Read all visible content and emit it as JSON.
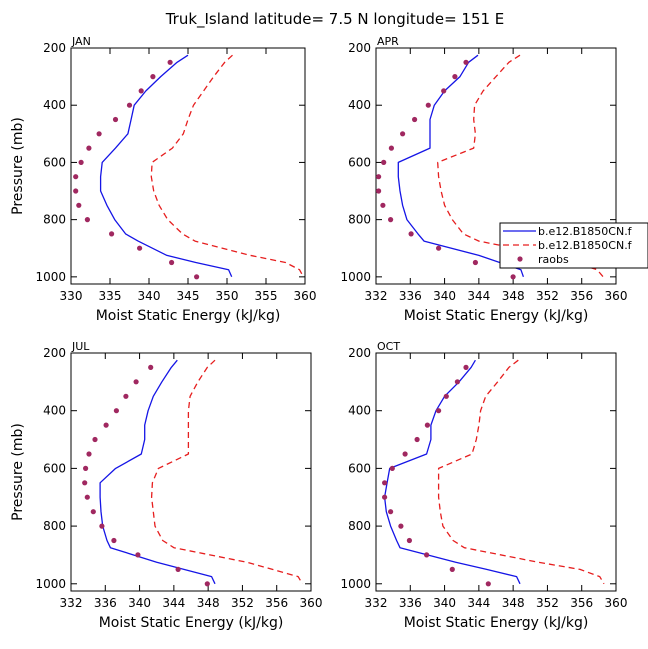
{
  "figure": {
    "title": "Truk_Island   latitude= 7.5 N longitude= 151 E"
  },
  "series_styles": [
    {
      "name": "b.e12.B1850CN.f",
      "color": "#1515e6",
      "dash": "",
      "kind": "line"
    },
    {
      "name": "b.e12.B1850CN.f",
      "color": "#e61e1e",
      "dash": "6,4",
      "kind": "line"
    },
    {
      "name": "raobs",
      "color": "#a02860",
      "dash": "",
      "kind": "marker"
    }
  ],
  "legend": {
    "entries": [
      "b.e12.B1850CN.f",
      "b.e12.B1850CN.f",
      "raobs"
    ]
  },
  "chart_data": [
    {
      "type": "line",
      "panel": "JAN",
      "xlabel": "Moist Static Energy (kJ/kg)",
      "ylabel": "Pressure (mb)",
      "xlim": [
        330,
        360
      ],
      "xticks": [
        330,
        335,
        340,
        345,
        350,
        355,
        360
      ],
      "ylim": [
        200,
        1025
      ],
      "yticks": [
        200,
        400,
        600,
        800,
        1000
      ],
      "series": [
        {
          "name": "b.e12.B1850CN.f",
          "points": [
            [
              345.0,
              225
            ],
            [
              343.6,
              250
            ],
            [
              341.5,
              300
            ],
            [
              339.6,
              350
            ],
            [
              338.1,
              400
            ],
            [
              337.7,
              450
            ],
            [
              337.3,
              500
            ],
            [
              335.7,
              550
            ],
            [
              334.0,
              600
            ],
            [
              333.8,
              650
            ],
            [
              333.8,
              700
            ],
            [
              334.6,
              750
            ],
            [
              335.6,
              800
            ],
            [
              337.0,
              850
            ],
            [
              338.6,
              875
            ],
            [
              342.3,
              925
            ],
            [
              346.0,
              950
            ],
            [
              350.2,
              975
            ],
            [
              350.6,
              1000
            ]
          ]
        },
        {
          "name": "b.e12.B1850CN.f",
          "points": [
            [
              350.7,
              225
            ],
            [
              349.7,
              250
            ],
            [
              348.3,
              300
            ],
            [
              347.0,
              350
            ],
            [
              345.7,
              400
            ],
            [
              345.0,
              450
            ],
            [
              344.4,
              500
            ],
            [
              343.0,
              550
            ],
            [
              340.4,
              600
            ],
            [
              340.3,
              650
            ],
            [
              340.6,
              700
            ],
            [
              341.3,
              750
            ],
            [
              342.4,
              800
            ],
            [
              344.3,
              850
            ],
            [
              345.9,
              875
            ],
            [
              353.0,
              925
            ],
            [
              357.5,
              950
            ],
            [
              359.3,
              975
            ],
            [
              359.8,
              1000
            ]
          ]
        },
        {
          "name": "raobs",
          "points": [
            [
              342.7,
              250
            ],
            [
              340.5,
              300
            ],
            [
              339.0,
              350
            ],
            [
              337.5,
              400
            ],
            [
              335.7,
              450
            ],
            [
              333.6,
              500
            ],
            [
              332.3,
              550
            ],
            [
              331.3,
              600
            ],
            [
              330.6,
              650
            ],
            [
              330.6,
              700
            ],
            [
              331.0,
              750
            ],
            [
              332.1,
              800
            ],
            [
              335.2,
              850
            ],
            [
              338.8,
              900
            ],
            [
              342.9,
              950
            ],
            [
              346.1,
              1000
            ]
          ]
        }
      ]
    },
    {
      "type": "line",
      "panel": "APR",
      "xlabel": "Moist Static Energy (kJ/kg)",
      "ylabel": "Pressure (mb)",
      "xlim": [
        332,
        360
      ],
      "xticks": [
        332,
        336,
        340,
        344,
        348,
        352,
        356,
        360
      ],
      "ylim": [
        200,
        1025
      ],
      "yticks": [
        200,
        400,
        600,
        800,
        1000
      ],
      "series": [
        {
          "name": "b.e12.B1850CN.f",
          "points": [
            [
              343.9,
              225
            ],
            [
              342.8,
              250
            ],
            [
              341.8,
              300
            ],
            [
              340.0,
              350
            ],
            [
              338.8,
              400
            ],
            [
              338.3,
              450
            ],
            [
              338.3,
              500
            ],
            [
              338.3,
              550
            ],
            [
              334.6,
              600
            ],
            [
              334.6,
              650
            ],
            [
              334.8,
              700
            ],
            [
              335.1,
              750
            ],
            [
              335.6,
              800
            ],
            [
              336.9,
              850
            ],
            [
              337.6,
              875
            ],
            [
              344.0,
              925
            ],
            [
              348.9,
              975
            ],
            [
              349.2,
              1000
            ]
          ]
        },
        {
          "name": "b.e12.B1850CN.f",
          "points": [
            [
              348.8,
              225
            ],
            [
              347.5,
              250
            ],
            [
              346.0,
              300
            ],
            [
              344.5,
              350
            ],
            [
              343.5,
              400
            ],
            [
              343.4,
              450
            ],
            [
              343.6,
              500
            ],
            [
              343.4,
              550
            ],
            [
              339.2,
              600
            ],
            [
              339.3,
              650
            ],
            [
              339.6,
              700
            ],
            [
              340.0,
              750
            ],
            [
              340.9,
              800
            ],
            [
              342.2,
              850
            ],
            [
              344.0,
              875
            ],
            [
              352.4,
              925
            ],
            [
              357.8,
              975
            ],
            [
              358.5,
              1000
            ]
          ]
        },
        {
          "name": "raobs",
          "points": [
            [
              342.5,
              250
            ],
            [
              341.2,
              300
            ],
            [
              339.9,
              350
            ],
            [
              338.1,
              400
            ],
            [
              336.5,
              450
            ],
            [
              335.1,
              500
            ],
            [
              333.8,
              550
            ],
            [
              332.9,
              600
            ],
            [
              332.3,
              650
            ],
            [
              332.3,
              700
            ],
            [
              332.8,
              750
            ],
            [
              333.7,
              800
            ],
            [
              336.1,
              850
            ],
            [
              339.3,
              900
            ],
            [
              343.6,
              950
            ],
            [
              348.0,
              1000
            ]
          ]
        }
      ]
    },
    {
      "type": "line",
      "panel": "JUL",
      "xlabel": "Moist Static Energy (kJ/kg)",
      "ylabel": "Pressure (mb)",
      "xlim": [
        332,
        360
      ],
      "xticks": [
        332,
        336,
        340,
        344,
        348,
        352,
        356,
        360
      ],
      "ylim": [
        200,
        1025
      ],
      "yticks": [
        200,
        400,
        600,
        800,
        1000
      ],
      "series": [
        {
          "name": "b.e12.B1850CN.f",
          "points": [
            [
              344.4,
              225
            ],
            [
              343.7,
              250
            ],
            [
              342.6,
              300
            ],
            [
              341.6,
              350
            ],
            [
              341.0,
              400
            ],
            [
              340.6,
              450
            ],
            [
              340.6,
              500
            ],
            [
              340.2,
              550
            ],
            [
              337.2,
              600
            ],
            [
              335.4,
              650
            ],
            [
              335.4,
              700
            ],
            [
              335.5,
              750
            ],
            [
              335.7,
              800
            ],
            [
              336.2,
              850
            ],
            [
              336.6,
              875
            ],
            [
              342.0,
              925
            ],
            [
              348.4,
              975
            ],
            [
              348.8,
              1000
            ]
          ]
        },
        {
          "name": "b.e12.B1850CN.f",
          "points": [
            [
              348.8,
              225
            ],
            [
              347.9,
              250
            ],
            [
              346.8,
              300
            ],
            [
              345.9,
              350
            ],
            [
              345.7,
              400
            ],
            [
              345.7,
              450
            ],
            [
              345.7,
              500
            ],
            [
              345.7,
              550
            ],
            [
              342.2,
              600
            ],
            [
              341.5,
              650
            ],
            [
              341.4,
              700
            ],
            [
              341.6,
              750
            ],
            [
              341.8,
              800
            ],
            [
              342.7,
              850
            ],
            [
              344.0,
              875
            ],
            [
              352.5,
              925
            ],
            [
              358.5,
              975
            ],
            [
              359.0,
              1000
            ]
          ]
        },
        {
          "name": "raobs",
          "points": [
            [
              341.3,
              250
            ],
            [
              339.6,
              300
            ],
            [
              338.4,
              350
            ],
            [
              337.3,
              400
            ],
            [
              336.1,
              450
            ],
            [
              334.8,
              500
            ],
            [
              334.1,
              550
            ],
            [
              333.7,
              600
            ],
            [
              333.6,
              650
            ],
            [
              333.9,
              700
            ],
            [
              334.6,
              750
            ],
            [
              335.6,
              800
            ],
            [
              337.0,
              850
            ],
            [
              339.8,
              900
            ],
            [
              344.5,
              950
            ],
            [
              347.9,
              1000
            ]
          ]
        }
      ]
    },
    {
      "type": "line",
      "panel": "OCT",
      "xlabel": "Moist Static Energy (kJ/kg)",
      "ylabel": "Pressure (mb)",
      "xlim": [
        332,
        360
      ],
      "xticks": [
        332,
        336,
        340,
        344,
        348,
        352,
        356,
        360
      ],
      "ylim": [
        200,
        1025
      ],
      "yticks": [
        200,
        400,
        600,
        800,
        1000
      ],
      "series": [
        {
          "name": "b.e12.B1850CN.f",
          "points": [
            [
              343.6,
              225
            ],
            [
              343.1,
              250
            ],
            [
              341.7,
              300
            ],
            [
              340.0,
              350
            ],
            [
              339.0,
              400
            ],
            [
              338.4,
              450
            ],
            [
              338.4,
              500
            ],
            [
              337.9,
              550
            ],
            [
              333.6,
              600
            ],
            [
              333.3,
              650
            ],
            [
              333.0,
              700
            ],
            [
              333.2,
              750
            ],
            [
              333.7,
              800
            ],
            [
              334.4,
              850
            ],
            [
              334.8,
              875
            ],
            [
              341.3,
              925
            ],
            [
              344.9,
              950
            ],
            [
              348.4,
              975
            ],
            [
              348.8,
              1000
            ]
          ]
        },
        {
          "name": "b.e12.B1850CN.f",
          "points": [
            [
              348.6,
              225
            ],
            [
              347.5,
              250
            ],
            [
              346.2,
              300
            ],
            [
              344.8,
              350
            ],
            [
              344.2,
              400
            ],
            [
              344.0,
              450
            ],
            [
              343.7,
              500
            ],
            [
              343.2,
              550
            ],
            [
              339.3,
              600
            ],
            [
              339.3,
              650
            ],
            [
              339.3,
              700
            ],
            [
              339.5,
              750
            ],
            [
              339.8,
              800
            ],
            [
              341.0,
              850
            ],
            [
              342.3,
              875
            ],
            [
              350.9,
              925
            ],
            [
              355.8,
              950
            ],
            [
              358.1,
              975
            ],
            [
              358.6,
              1000
            ]
          ]
        },
        {
          "name": "raobs",
          "points": [
            [
              342.5,
              250
            ],
            [
              341.5,
              300
            ],
            [
              340.2,
              350
            ],
            [
              339.3,
              400
            ],
            [
              338.0,
              450
            ],
            [
              336.8,
              500
            ],
            [
              335.4,
              550
            ],
            [
              333.9,
              600
            ],
            [
              333.0,
              650
            ],
            [
              333.0,
              700
            ],
            [
              333.7,
              750
            ],
            [
              334.9,
              800
            ],
            [
              335.9,
              850
            ],
            [
              337.9,
              900
            ],
            [
              340.9,
              950
            ],
            [
              345.1,
              1000
            ]
          ]
        }
      ]
    }
  ]
}
